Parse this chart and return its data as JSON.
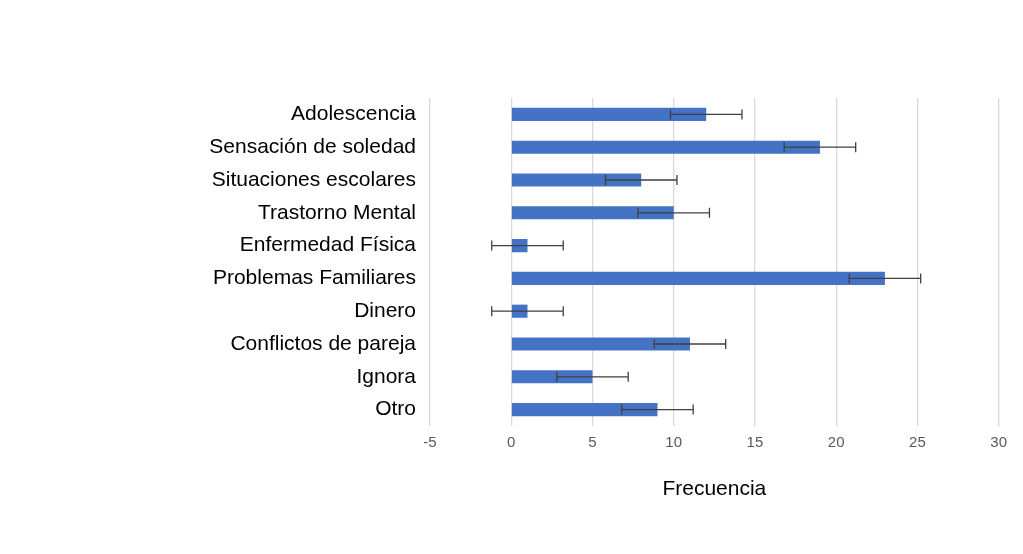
{
  "chart_data": {
    "type": "bar",
    "orientation": "horizontal",
    "xlabel": "Frecuencia",
    "categories": [
      "Adolescencia",
      "Sensación de soledad",
      "Situaciones escolares",
      "Trastorno Mental",
      "Enfermedad Física",
      "Problemas Familiares",
      "Dinero",
      "Conflictos de pareja",
      "Ignora",
      "Otro"
    ],
    "values": [
      12,
      19,
      8,
      10,
      1,
      23,
      1,
      11,
      5,
      9
    ],
    "errors": [
      2.2,
      2.2,
      2.2,
      2.2,
      2.2,
      2.2,
      2.2,
      2.2,
      2.2,
      2.2
    ],
    "color": "#4472c4",
    "xlim": [
      -5,
      30
    ],
    "xticks": [
      -5,
      0,
      5,
      10,
      15,
      20,
      25,
      30
    ],
    "grid": "x",
    "legend": false
  }
}
